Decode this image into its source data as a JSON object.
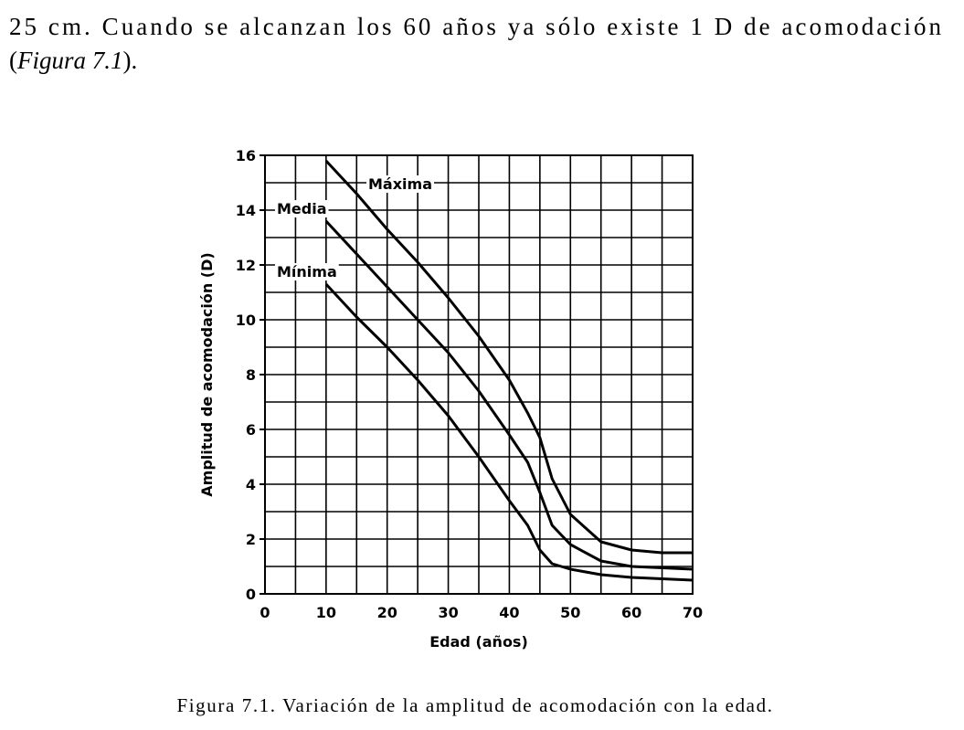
{
  "paragraph": {
    "line1": "25 cm. Cuando se alcanzan los 60 años ya sólo existe 1 D de acomodación",
    "open": "(",
    "ref": "Figura 7.1",
    "close": ")."
  },
  "caption": "Figura 7.1. Variación de la amplitud de acomodación con la edad.",
  "chart_data": {
    "type": "line",
    "xlabel": "Edad (años)",
    "ylabel": "Amplitud de acomodación (D)",
    "xlim": [
      0,
      70
    ],
    "ylim": [
      0,
      16
    ],
    "xticks": [
      0,
      10,
      20,
      30,
      40,
      50,
      60,
      70
    ],
    "yticks": [
      0,
      2,
      4,
      6,
      8,
      10,
      12,
      14,
      16
    ],
    "x_gridlines": [
      0,
      5,
      10,
      15,
      20,
      25,
      30,
      35,
      40,
      45,
      50,
      55,
      60,
      65,
      70
    ],
    "y_gridlines": [
      0,
      1,
      2,
      3,
      4,
      5,
      6,
      7,
      8,
      9,
      10,
      11,
      12,
      13,
      14,
      15,
      16
    ],
    "grid": true,
    "x": [
      10,
      15,
      20,
      25,
      30,
      35,
      40,
      43,
      45,
      47,
      50,
      55,
      60,
      65,
      70
    ],
    "series": [
      {
        "name": "Máxima",
        "color": "#000000",
        "values": [
          15.8,
          14.6,
          13.3,
          12.1,
          10.8,
          9.4,
          7.8,
          6.6,
          5.7,
          4.2,
          2.9,
          1.9,
          1.6,
          1.5,
          1.5
        ]
      },
      {
        "name": "Media",
        "color": "#000000",
        "values": [
          13.6,
          12.4,
          11.2,
          10.0,
          8.8,
          7.4,
          5.8,
          4.8,
          3.7,
          2.5,
          1.8,
          1.2,
          1.0,
          0.95,
          0.9
        ]
      },
      {
        "name": "Mínima",
        "color": "#000000",
        "values": [
          11.3,
          10.1,
          9.0,
          7.8,
          6.5,
          5.0,
          3.4,
          2.5,
          1.6,
          1.1,
          0.9,
          0.7,
          0.6,
          0.55,
          0.5
        ]
      }
    ]
  }
}
